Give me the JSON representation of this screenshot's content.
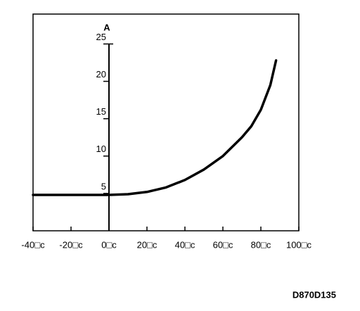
{
  "chart_data": {
    "type": "line",
    "y_label": "A",
    "annotation": "D870D135",
    "x": [
      -40,
      -20,
      0,
      10,
      20,
      30,
      40,
      50,
      60,
      70,
      75,
      80,
      85,
      88
    ],
    "series": [
      {
        "color": "#000000",
        "values": [
          4.8,
          4.8,
          4.8,
          4.9,
          5.2,
          5.8,
          6.8,
          8.2,
          10,
          12.5,
          14,
          16.2,
          19.5,
          22.8
        ]
      }
    ],
    "xlim": [
      -40,
      100
    ],
    "ylim": [
      0,
      29
    ],
    "xticks": [
      {
        "value": -40,
        "label": "-40□c"
      },
      {
        "value": -20,
        "label": "-20□c"
      },
      {
        "value": 0,
        "label": "0□c"
      },
      {
        "value": 20,
        "label": "20□c"
      },
      {
        "value": 40,
        "label": "40□c"
      },
      {
        "value": 60,
        "label": "60□c"
      },
      {
        "value": 80,
        "label": "80□c"
      },
      {
        "value": 100,
        "label": "100□c"
      }
    ],
    "yticks": [
      5,
      10,
      15,
      20,
      25
    ],
    "grid": false
  }
}
